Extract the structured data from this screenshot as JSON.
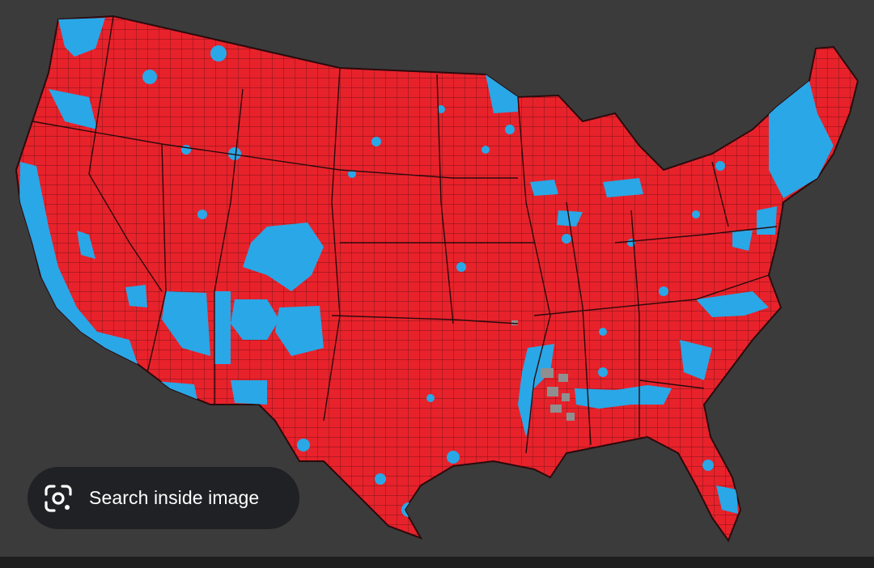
{
  "map": {
    "colors": {
      "background": "#3b3b3b",
      "red_fill": "#e8222b",
      "blue_fill": "#2aa7e6",
      "gray_fill": "#8f8f8f",
      "border": "#4a0f12"
    }
  },
  "lens_button": {
    "icon": "google-lens-icon",
    "label": "Search inside image"
  }
}
